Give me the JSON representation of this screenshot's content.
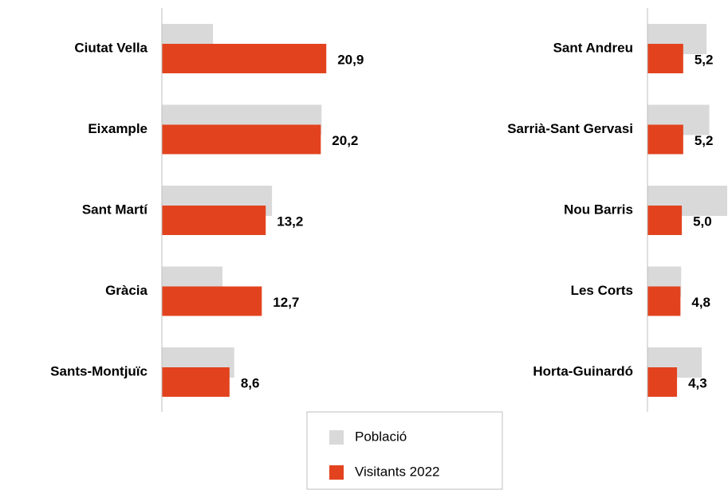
{
  "chart_data": {
    "type": "bar",
    "orientation": "horizontal",
    "legend": "bottom",
    "series": [
      {
        "name": "Població",
        "color": "#d9d9d9"
      },
      {
        "name": "Visitants 2022",
        "color": "#e2431e"
      }
    ],
    "panels": [
      {
        "categories": [
          "Ciutat Vella",
          "Eixample",
          "Sant Martí",
          "Gràcia",
          "Sants-Montjuïc"
        ],
        "xlim": [
          0,
          30
        ],
        "series": [
          {
            "values": [
              6.5,
              20.3,
              14.0,
              7.7,
              9.2
            ]
          },
          {
            "values": [
              20.9,
              20.2,
              13.2,
              12.7,
              8.6
            ],
            "value_labels": [
              "20,9",
              "20,2",
              "13,2",
              "12,7",
              "8,6"
            ]
          }
        ]
      },
      {
        "categories": [
          "Sant Andreu",
          "Sarrià-Sant Gervasi",
          "Nou Barris",
          "Les Corts",
          "Horta-Guinardó"
        ],
        "xlim": [
          0,
          11.6
        ],
        "series": [
          {
            "values": [
              8.6,
              9.0,
              11.6,
              4.9,
              7.9
            ]
          },
          {
            "values": [
              5.2,
              5.2,
              5.0,
              4.8,
              4.3
            ],
            "value_labels": [
              "5,2",
              "5,2",
              "5,0",
              "4,8",
              "4,3"
            ]
          }
        ]
      }
    ]
  }
}
